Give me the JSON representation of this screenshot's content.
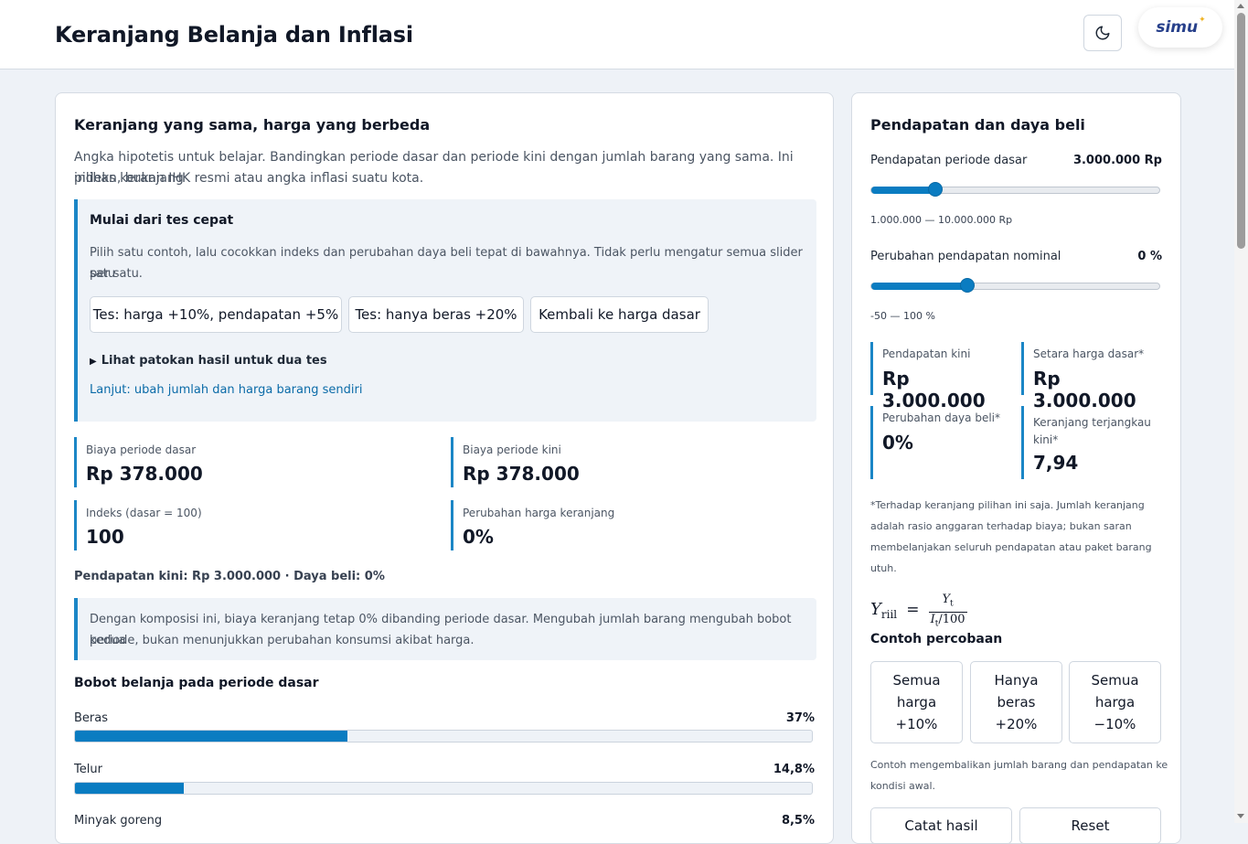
{
  "header": {
    "title": "Keranjang Belanja dan Inflasi",
    "theme_icon": "moon-icon",
    "logo_text": "simu"
  },
  "colors": {
    "accent": "#0a7cc1",
    "panel": "#eff3f8",
    "background": "#eef2f7"
  },
  "left": {
    "title": "Keranjang yang sama, harga yang berbeda",
    "intro_line1": "Angka hipotetis untuk belajar. Bandingkan periode dasar dan periode kini dengan jumlah barang yang sama. Ini indeks keranjang",
    "intro_line2": "pilihan, bukan IHK resmi atau angka inflasi suatu kota.",
    "quick": {
      "title": "Mulai dari tes cepat",
      "desc_line1": "Pilih satu contoh, lalu cocokkan indeks dan perubahan daya beli tepat di bawahnya. Tidak perlu mengatur semua slider satu",
      "desc_line2": "per satu.",
      "buttons": [
        "Tes: harga +10%, pendapatan +5%",
        "Tes: hanya beras +20%",
        "Kembali ke harga dasar"
      ],
      "details_label": "Lihat patokan hasil untuk dua tes",
      "link": "Lanjut: ubah jumlah dan harga barang sendiri"
    },
    "stats": [
      {
        "label": "Biaya periode dasar",
        "value": "Rp 378.000"
      },
      {
        "label": "Biaya periode kini",
        "value": "Rp 378.000"
      },
      {
        "label": "Indeks (dasar = 100)",
        "value": "100"
      },
      {
        "label": "Perubahan harga keranjang",
        "value": "0%"
      }
    ],
    "summary": "Pendapatan kini: Rp 3.000.000 · Daya beli: 0%",
    "note_line1": "Dengan komposisi ini, biaya keranjang tetap 0% dibanding periode dasar. Mengubah jumlah barang mengubah bobot kedua",
    "note_line2": "periode, bukan menunjukkan perubahan konsumsi akibat harga.",
    "weights_title": "Bobot belanja pada periode dasar",
    "weights": [
      {
        "label": "Beras",
        "pct_text": "37%",
        "value": 0.37
      },
      {
        "label": "Telur",
        "pct_text": "14,8%",
        "value": 0.148
      },
      {
        "label": "Minyak goreng",
        "pct_text": "8,5%",
        "value": 0.085
      }
    ]
  },
  "right": {
    "title": "Pendapatan dan daya beli",
    "income": {
      "label": "Pendapatan periode dasar",
      "value_text": "3.000.000 Rp",
      "fraction": 0.222,
      "range": "1.000.000 — 10.000.000 Rp"
    },
    "change": {
      "label": "Perubahan pendapatan nominal",
      "value_text": "0 %",
      "fraction": 0.333,
      "range": "-50 — 100 %"
    },
    "stats": [
      {
        "label": "Pendapatan kini",
        "value": "Rp 3.000.000"
      },
      {
        "label": "Setara harga dasar*",
        "value": "Rp 3.000.000"
      },
      {
        "label": "Perubahan daya beli*",
        "value": "0%"
      },
      {
        "label_line1": "Keranjang terjangkau",
        "label_line2": "kini*",
        "value": "7,94"
      }
    ],
    "footnote": [
      "*Terhadap keranjang pilihan ini saja. Jumlah keranjang",
      "adalah rasio anggaran terhadap biaya; bukan saran",
      "membelanjakan seluruh pendapatan atau paket barang",
      "utuh."
    ],
    "formula": {
      "lhs": "Y",
      "lhs_sub": "riil",
      "num": "Y",
      "num_sub": "t",
      "den": "I",
      "den_sub": "t",
      "den_tail": "/100"
    },
    "examples_title": "Contoh percobaan",
    "examples": [
      {
        "l1": "Semua",
        "l2": "harga",
        "l3": "+10%"
      },
      {
        "l1": "Hanya",
        "l2": "beras",
        "l3": "+20%"
      },
      {
        "l1": "Semua",
        "l2": "harga",
        "l3": "−10%"
      }
    ],
    "examples_note_line1": "Contoh mengembalikan jumlah barang dan pendapatan ke",
    "examples_note_line2": "kondisi awal.",
    "bottom_buttons": [
      "Catat hasil",
      "Reset"
    ]
  }
}
